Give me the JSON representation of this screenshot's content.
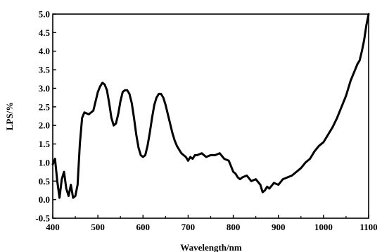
{
  "chart_data": {
    "type": "line",
    "title": "",
    "xlabel": "Wavelength/nm",
    "ylabel": "LPS/%",
    "xlim": [
      400,
      1100
    ],
    "ylim": [
      -0.5,
      5.0
    ],
    "x_ticks": [
      "400",
      "500",
      "600",
      "700",
      "800",
      "900",
      "1000",
      "1100"
    ],
    "y_ticks": [
      "-0.5",
      "0.0",
      "0.5",
      "1.0",
      "1.5",
      "2.0",
      "2.5",
      "3.0",
      "3.5",
      "4.0",
      "4.5",
      "5.0"
    ],
    "grid": false,
    "line_color": "#000000",
    "series": [
      {
        "x": [
          400,
          405,
          410,
          415,
          420,
          425,
          430,
          435,
          440,
          445,
          450,
          455,
          460,
          465,
          470,
          480,
          490,
          500,
          505,
          510,
          515,
          520,
          525,
          530,
          535,
          540,
          545,
          550,
          555,
          560,
          565,
          570,
          575,
          580,
          585,
          590,
          595,
          600,
          605,
          610,
          615,
          620,
          625,
          630,
          635,
          640,
          645,
          650,
          655,
          660,
          665,
          670,
          675,
          680,
          685,
          690,
          695,
          700,
          705,
          710,
          715,
          720,
          730,
          740,
          750,
          760,
          770,
          780,
          790,
          800,
          805,
          810,
          815,
          820,
          830,
          840,
          850,
          860,
          865,
          870,
          875,
          880,
          890,
          900,
          910,
          920,
          930,
          940,
          950,
          960,
          970,
          980,
          990,
          1000,
          1010,
          1020,
          1030,
          1040,
          1050,
          1060,
          1065,
          1070,
          1075,
          1080,
          1085,
          1090,
          1095,
          1100
        ],
        "y": [
          0.95,
          1.1,
          0.5,
          0.05,
          0.55,
          0.75,
          0.3,
          0.1,
          0.4,
          0.05,
          0.1,
          0.4,
          1.5,
          2.2,
          2.35,
          2.3,
          2.4,
          2.9,
          3.05,
          3.15,
          3.1,
          2.95,
          2.6,
          2.2,
          2.0,
          2.05,
          2.3,
          2.65,
          2.9,
          2.95,
          2.95,
          2.85,
          2.6,
          2.2,
          1.75,
          1.4,
          1.2,
          1.15,
          1.2,
          1.45,
          1.8,
          2.2,
          2.55,
          2.75,
          2.85,
          2.85,
          2.75,
          2.55,
          2.3,
          2.05,
          1.8,
          1.6,
          1.45,
          1.35,
          1.25,
          1.2,
          1.15,
          1.05,
          1.15,
          1.1,
          1.2,
          1.2,
          1.25,
          1.15,
          1.2,
          1.2,
          1.25,
          1.1,
          1.05,
          0.75,
          0.7,
          0.6,
          0.55,
          0.6,
          0.65,
          0.5,
          0.55,
          0.4,
          0.2,
          0.25,
          0.35,
          0.3,
          0.45,
          0.4,
          0.55,
          0.6,
          0.65,
          0.75,
          0.85,
          1.0,
          1.1,
          1.3,
          1.45,
          1.55,
          1.75,
          1.95,
          2.2,
          2.5,
          2.8,
          3.2,
          3.35,
          3.5,
          3.65,
          3.75,
          4.0,
          4.3,
          4.7,
          5.0
        ]
      }
    ]
  }
}
